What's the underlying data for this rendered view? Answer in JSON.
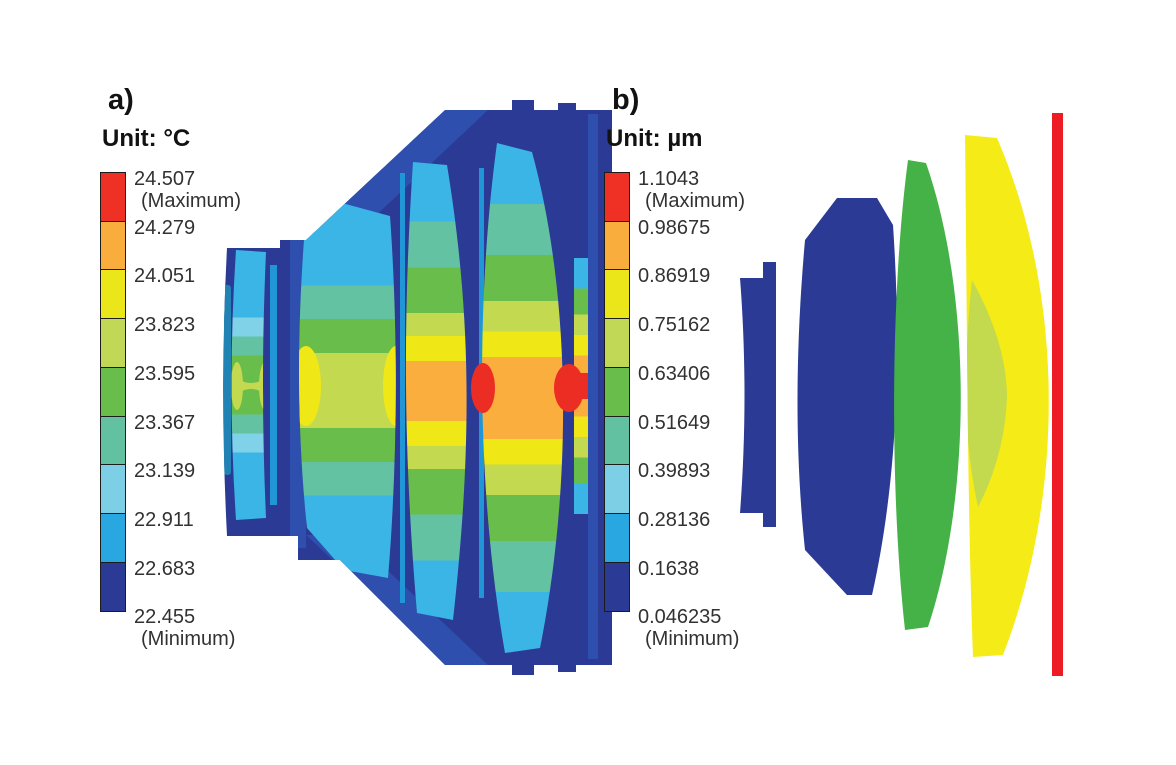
{
  "figure": {
    "panel_a": {
      "label": "a)",
      "unit_label": "Unit: °C"
    },
    "panel_b": {
      "label": "b)",
      "unit_label": "Unit: µm"
    }
  },
  "legends": {
    "panel_a": {
      "colors": [
        "#ee3124",
        "#f9ad3c",
        "#ebe619",
        "#c1d857",
        "#69bd4b",
        "#61c1a0",
        "#7dcfe6",
        "#29a7e1",
        "#2b3a94"
      ],
      "labels": [
        "24.507",
        "24.279",
        "24.051",
        "23.823",
        "23.595",
        "23.367",
        "23.139",
        "22.911",
        "22.683",
        "22.455"
      ],
      "max_qualifier": "(Maximum)",
      "min_qualifier": "(Minimum)"
    },
    "panel_b": {
      "colors": [
        "#ee3124",
        "#f9ad3c",
        "#ebe619",
        "#c1d857",
        "#69bd4b",
        "#61c1a0",
        "#7dcfe6",
        "#29a7e1",
        "#2b3a94"
      ],
      "labels": [
        "1.1043",
        "0.98675",
        "0.86919",
        "0.75162",
        "0.63406",
        "0.51649",
        "0.39893",
        "0.28136",
        "0.1638",
        "0.046235"
      ],
      "max_qualifier": "(Maximum)",
      "min_qualifier": "(Minimum)"
    }
  }
}
